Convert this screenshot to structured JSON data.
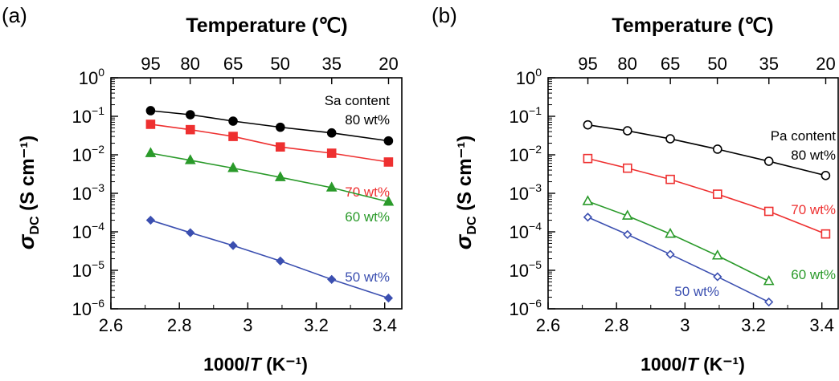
{
  "chart_data": [
    {
      "type": "line",
      "panel_label": "(a)",
      "top_axis_label": "Temperature (℃)",
      "top_ticks": [
        "95",
        "80",
        "65",
        "50",
        "35",
        "20"
      ],
      "top_tick_values_celsius": [
        95,
        80,
        65,
        50,
        35,
        20
      ],
      "xlabel": "1000/T (K⁻¹)",
      "xlabel_parts": {
        "pre": "1000/",
        "italic": "T",
        "post": " (K⁻¹)"
      },
      "ylabel": "σDC (S cm⁻¹)",
      "ylabel_parts": {
        "sym": "σ",
        "sub": "DC",
        "post": " (S cm⁻¹)"
      },
      "xlim": [
        2.6,
        3.45
      ],
      "x_ticks": [
        2.6,
        2.8,
        3.0,
        3.2,
        3.4
      ],
      "x_tick_labels": [
        "2.6",
        "2.8",
        "3",
        "3.2",
        "3.4"
      ],
      "ylim": [
        1e-06,
        1
      ],
      "yscale": "log",
      "y_ticks": [
        {
          "base": "10",
          "exp": "0"
        },
        {
          "base": "10",
          "exp": "−1"
        },
        {
          "base": "10",
          "exp": "−2"
        },
        {
          "base": "10",
          "exp": "−3"
        },
        {
          "base": "10",
          "exp": "−4"
        },
        {
          "base": "10",
          "exp": "−5"
        },
        {
          "base": "10",
          "exp": "−6"
        }
      ],
      "x": [
        2.716,
        2.832,
        2.957,
        3.095,
        3.245,
        3.411
      ],
      "series": [
        {
          "label": "80 wt%",
          "header": "Sa content",
          "color": "#000000",
          "line_color": "#000000",
          "marker": "circle",
          "filled": true,
          "values": [
            0.14,
            0.11,
            0.075,
            0.052,
            0.037,
            0.023
          ]
        },
        {
          "label": "70 wt%",
          "color": "#ee3030",
          "line_color": "#ee3030",
          "marker": "square",
          "filled": true,
          "values": [
            0.062,
            0.045,
            0.03,
            0.016,
            0.011,
            0.0065
          ]
        },
        {
          "label": "60 wt%",
          "color": "#2a9a2a",
          "line_color": "#2a9a2a",
          "marker": "triangle",
          "filled": true,
          "values": [
            0.011,
            0.0072,
            0.0045,
            0.0026,
            0.0014,
            0.0006
          ]
        },
        {
          "label": "50 wt%",
          "color": "#3b4fb0",
          "line_color": "#3b4fb0",
          "marker": "diamond",
          "filled": true,
          "values": [
            0.0002,
            9.5e-05,
            4.4e-05,
            1.75e-05,
            5.8e-06,
            1.9e-06
          ]
        }
      ]
    },
    {
      "type": "line",
      "panel_label": "(b)",
      "top_axis_label": "Temperature (℃)",
      "top_ticks": [
        "95",
        "80",
        "65",
        "50",
        "35",
        "20"
      ],
      "top_tick_values_celsius": [
        95,
        80,
        65,
        50,
        35,
        20
      ],
      "xlabel": "1000/T (K⁻¹)",
      "xlabel_parts": {
        "pre": "1000/",
        "italic": "T",
        "post": " (K⁻¹)"
      },
      "ylabel": "σDC (S cm⁻¹)",
      "ylabel_parts": {
        "sym": "σ",
        "sub": "DC",
        "post": " (S cm⁻¹)"
      },
      "xlim": [
        2.6,
        3.45
      ],
      "x_ticks": [
        2.6,
        2.8,
        3.0,
        3.2,
        3.4
      ],
      "x_tick_labels": [
        "2.6",
        "2.8",
        "3",
        "3.2",
        "3.4"
      ],
      "ylim": [
        1e-06,
        1
      ],
      "yscale": "log",
      "y_ticks": [
        {
          "base": "10",
          "exp": "0"
        },
        {
          "base": "10",
          "exp": "−1"
        },
        {
          "base": "10",
          "exp": "−2"
        },
        {
          "base": "10",
          "exp": "−3"
        },
        {
          "base": "10",
          "exp": "−4"
        },
        {
          "base": "10",
          "exp": "−5"
        },
        {
          "base": "10",
          "exp": "−6"
        }
      ],
      "x": [
        2.716,
        2.832,
        2.957,
        3.095,
        3.245,
        3.411
      ],
      "series": [
        {
          "label": "80 wt%",
          "header": "Pa content",
          "color": "#000000",
          "line_color": "#000000",
          "marker": "circle",
          "filled": false,
          "x": [
            2.716,
            2.832,
            2.957,
            3.095,
            3.245,
            3.411
          ],
          "values": [
            0.06,
            0.042,
            0.026,
            0.014,
            0.0068,
            0.0029
          ]
        },
        {
          "label": "70 wt%",
          "color": "#ee3030",
          "line_color": "#ee3030",
          "marker": "square",
          "filled": false,
          "x": [
            2.716,
            2.832,
            2.957,
            3.095,
            3.245,
            3.411
          ],
          "values": [
            0.008,
            0.0045,
            0.0023,
            0.00095,
            0.00034,
            8.8e-05
          ]
        },
        {
          "label": "60 wt%",
          "color": "#2a9a2a",
          "line_color": "#2a9a2a",
          "marker": "triangle",
          "filled": false,
          "x": [
            2.716,
            2.832,
            2.957,
            3.095,
            3.245
          ],
          "values": [
            0.00062,
            0.00026,
            8.8e-05,
            2.4e-05,
            5.2e-06
          ]
        },
        {
          "label": "50 wt%",
          "color": "#3b4fb0",
          "line_color": "#3b4fb0",
          "marker": "diamond",
          "filled": false,
          "x": [
            2.716,
            2.832,
            2.957,
            3.095,
            3.245
          ],
          "values": [
            0.00024,
            8.5e-05,
            2.6e-05,
            6.8e-06,
            1.5e-06
          ]
        }
      ]
    }
  ]
}
